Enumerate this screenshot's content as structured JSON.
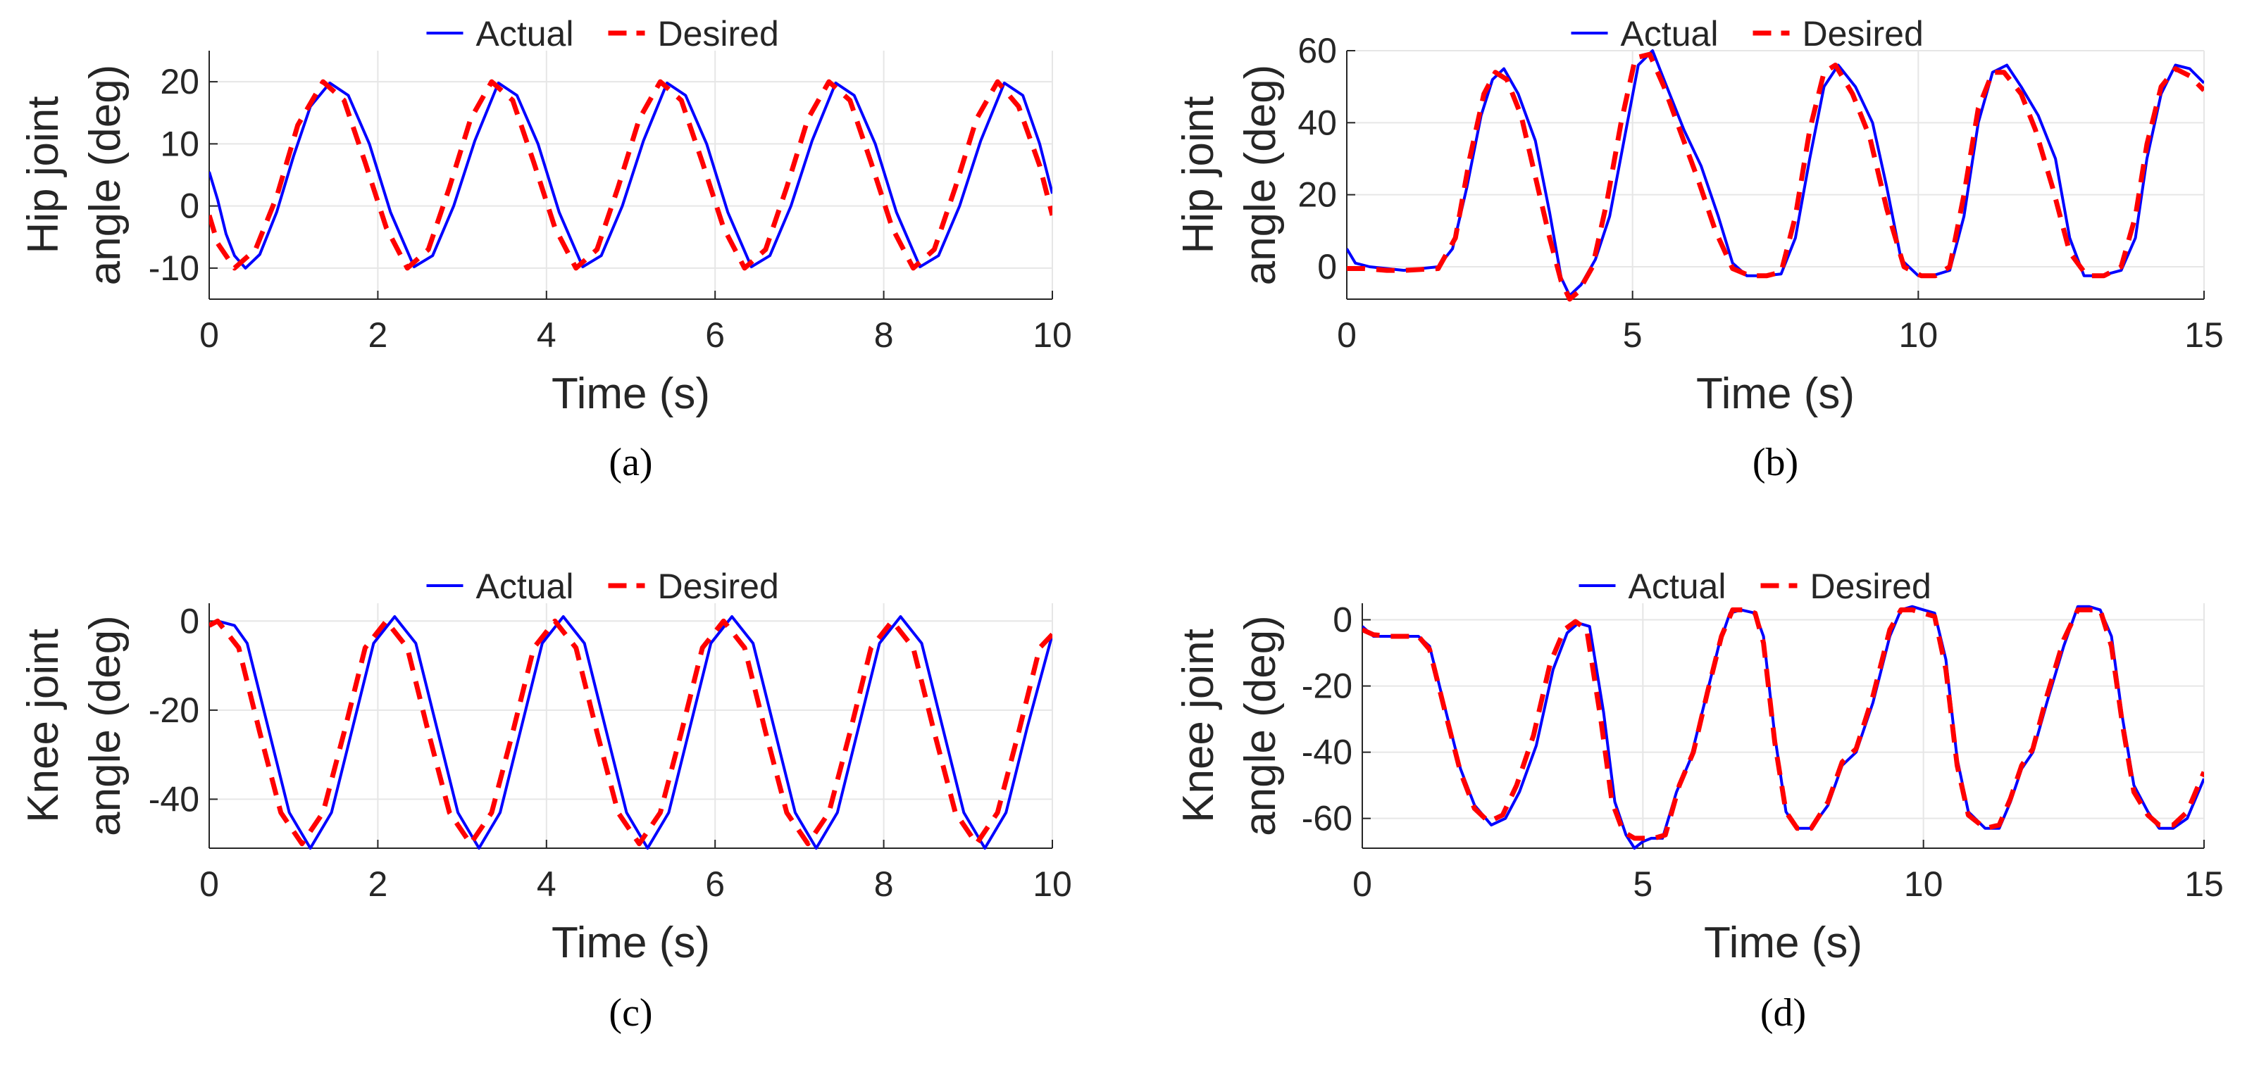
{
  "figure": {
    "background": "#ffffff",
    "colors": {
      "actual": "#0000ff",
      "desired": "#ff0000"
    }
  },
  "chart_data": [
    {
      "id": "a",
      "type": "line",
      "caption": "(a)",
      "xlabel": "Time (s)",
      "ylabel": [
        "Hip joint",
        "angle (deg)"
      ],
      "xlim": [
        0,
        10
      ],
      "ylim": [
        -15,
        25
      ],
      "xticks": [
        0,
        2,
        4,
        6,
        8,
        10
      ],
      "yticks": [
        -10,
        0,
        10,
        20
      ],
      "grid": true,
      "legend": {
        "placement": "top-center",
        "entries": [
          "Actual",
          "Desired"
        ]
      },
      "series": [
        {
          "name": "Actual",
          "color": "#0000ff",
          "style": "solid",
          "x": [
            0,
            0.1,
            0.2,
            0.3,
            0.43,
            0.6,
            0.8,
            1.0,
            1.2,
            1.43,
            1.65,
            1.9,
            2.15,
            2.43,
            2.65,
            2.9,
            3.15,
            3.43,
            3.65,
            3.9,
            4.15,
            4.43,
            4.65,
            4.9,
            5.15,
            5.43,
            5.65,
            5.9,
            6.15,
            6.43,
            6.65,
            6.9,
            7.15,
            7.43,
            7.65,
            7.9,
            8.15,
            8.43,
            8.65,
            8.9,
            9.15,
            9.43,
            9.65,
            9.85,
            10
          ],
          "y": [
            5.5,
            1,
            -4.5,
            -8,
            -10,
            -7.8,
            -1,
            8,
            16,
            19.8,
            17.8,
            10,
            -1,
            -9.8,
            -8,
            0,
            10.5,
            19.8,
            17.8,
            10,
            -1,
            -9.8,
            -8,
            0,
            10.5,
            19.8,
            17.8,
            10,
            -1,
            -9.8,
            -8,
            0,
            10.5,
            19.8,
            17.8,
            10,
            -1,
            -9.8,
            -8,
            0,
            10.5,
            19.8,
            17.8,
            10,
            2
          ]
        },
        {
          "name": "Desired",
          "color": "#ff0000",
          "style": "dashed",
          "x": [
            0,
            0.1,
            0.3,
            0.55,
            0.8,
            1.05,
            1.35,
            1.6,
            1.85,
            2.1,
            2.35,
            2.6,
            2.85,
            3.1,
            3.35,
            3.6,
            3.85,
            4.1,
            4.35,
            4.6,
            4.85,
            5.1,
            5.35,
            5.6,
            5.85,
            6.1,
            6.35,
            6.6,
            6.85,
            7.1,
            7.35,
            7.6,
            7.85,
            8.1,
            8.35,
            8.6,
            8.85,
            9.1,
            9.35,
            9.6,
            9.85,
            10
          ],
          "y": [
            -1.5,
            -6,
            -10,
            -7,
            1.5,
            13,
            20,
            17,
            7,
            -3.5,
            -10,
            -7,
            3,
            14,
            20,
            17,
            7,
            -3.5,
            -10,
            -7,
            3,
            14,
            20,
            17,
            7,
            -3.5,
            -10,
            -7,
            3,
            14,
            20,
            17,
            7,
            -3.5,
            -10,
            -7,
            3,
            14,
            20,
            16,
            6.5,
            -1.5
          ]
        }
      ]
    },
    {
      "id": "b",
      "type": "line",
      "caption": "(b)",
      "xlabel": "Time (s)",
      "ylabel": [
        "Hip joint",
        "angle (deg)"
      ],
      "xlim": [
        0,
        15
      ],
      "ylim": [
        -9,
        60
      ],
      "xticks": [
        0,
        5,
        10,
        15
      ],
      "yticks": [
        0,
        20,
        40,
        60
      ],
      "grid": true,
      "legend": {
        "placement": "top-center",
        "entries": [
          "Actual",
          "Desired"
        ]
      },
      "series": [
        {
          "name": "Actual",
          "color": "#0000ff",
          "style": "solid",
          "x": [
            0,
            0.15,
            0.4,
            1.0,
            1.6,
            1.85,
            2.1,
            2.35,
            2.55,
            2.75,
            3.0,
            3.3,
            3.55,
            3.75,
            3.9,
            4.1,
            4.35,
            4.6,
            4.85,
            5.1,
            5.35,
            5.6,
            5.9,
            6.2,
            6.5,
            6.75,
            7.0,
            7.3,
            7.6,
            7.85,
            8.1,
            8.35,
            8.6,
            8.9,
            9.2,
            9.45,
            9.7,
            10.0,
            10.25,
            10.55,
            10.8,
            11.05,
            11.3,
            11.55,
            11.8,
            12.1,
            12.4,
            12.65,
            12.9,
            13.2,
            13.55,
            13.8,
            14.0,
            14.25,
            14.5,
            14.75,
            15
          ],
          "y": [
            5,
            1,
            0,
            -1,
            0,
            5,
            22,
            42,
            52,
            55,
            48,
            35,
            15,
            -3,
            -8,
            -5,
            2,
            14,
            35,
            56,
            60,
            50,
            38,
            28,
            14,
            1,
            -2.5,
            -2.5,
            -2,
            8,
            30,
            50,
            56,
            50,
            40,
            22,
            2,
            -2.5,
            -2.5,
            -1,
            14,
            40,
            54,
            56,
            50,
            42,
            30,
            8,
            -2.5,
            -2.5,
            -1,
            8,
            30,
            48,
            56,
            55,
            51
          ]
        },
        {
          "name": "Desired",
          "color": "#ff0000",
          "style": "dashed",
          "x": [
            0,
            0.3,
            0.7,
            1.0,
            1.6,
            1.9,
            2.15,
            2.4,
            2.6,
            2.8,
            3.05,
            3.3,
            3.55,
            3.75,
            3.9,
            4.05,
            4.3,
            4.55,
            4.8,
            5.05,
            5.3,
            5.55,
            5.85,
            6.15,
            6.45,
            6.75,
            7.05,
            7.35,
            7.6,
            7.85,
            8.1,
            8.35,
            8.55,
            8.85,
            9.15,
            9.45,
            9.75,
            10.05,
            10.3,
            10.55,
            10.8,
            11.05,
            11.3,
            11.5,
            11.8,
            12.05,
            12.35,
            12.65,
            12.95,
            13.25,
            13.55,
            13.8,
            14.0,
            14.25,
            14.5,
            14.75,
            15
          ],
          "y": [
            -0.5,
            -0.5,
            -1,
            -1,
            -0.5,
            8,
            30,
            48,
            54,
            52,
            42,
            25,
            8,
            -4,
            -9,
            -7,
            0,
            18,
            40,
            58,
            59,
            50,
            37,
            24,
            10,
            -0.5,
            -2.5,
            -2.5,
            -1.5,
            14,
            38,
            54,
            56,
            48,
            36,
            16,
            0,
            -2.5,
            -2.5,
            0,
            20,
            44,
            54,
            54,
            48,
            38,
            22,
            4,
            -2.5,
            -2.5,
            0,
            14,
            34,
            50,
            55,
            53,
            49
          ]
        }
      ]
    },
    {
      "id": "c",
      "type": "line",
      "caption": "(c)",
      "xlabel": "Time (s)",
      "ylabel": [
        "Knee joint",
        "angle (deg)"
      ],
      "xlim": [
        0,
        10
      ],
      "ylim": [
        -51,
        4
      ],
      "xticks": [
        0,
        2,
        4,
        6,
        8,
        10
      ],
      "yticks": [
        -40,
        -20,
        0
      ],
      "grid": true,
      "legend": {
        "placement": "top-center",
        "entries": [
          "Actual",
          "Desired"
        ]
      },
      "series": [
        {
          "name": "Actual",
          "color": "#0000ff",
          "style": "solid",
          "x": [
            0,
            0.1,
            0.3,
            0.45,
            0.7,
            0.95,
            1.2,
            1.45,
            1.7,
            1.95,
            2.2,
            2.45,
            2.7,
            2.95,
            3.2,
            3.45,
            3.7,
            3.95,
            4.2,
            4.45,
            4.7,
            4.95,
            5.2,
            5.45,
            5.7,
            5.95,
            6.2,
            6.45,
            6.7,
            6.95,
            7.2,
            7.45,
            7.7,
            7.95,
            8.2,
            8.45,
            8.7,
            8.95,
            9.2,
            9.45,
            9.7,
            10
          ],
          "y": [
            -1,
            0,
            -1,
            -5,
            -24,
            -43,
            -51,
            -43,
            -24,
            -5,
            1,
            -5,
            -24,
            -43,
            -51,
            -43,
            -24,
            -5,
            1,
            -5,
            -24,
            -43,
            -51,
            -43,
            -24,
            -5,
            1,
            -5,
            -24,
            -43,
            -51,
            -43,
            -24,
            -5,
            1,
            -5,
            -24,
            -43,
            -51,
            -43,
            -24,
            -3
          ]
        },
        {
          "name": "Desired",
          "color": "#ff0000",
          "style": "dashed",
          "x": [
            0,
            0.1,
            0.35,
            0.6,
            0.85,
            1.1,
            1.35,
            1.6,
            1.85,
            2.1,
            2.35,
            2.6,
            2.85,
            3.1,
            3.35,
            3.6,
            3.85,
            4.1,
            4.35,
            4.6,
            4.85,
            5.1,
            5.35,
            5.6,
            5.85,
            6.1,
            6.35,
            6.6,
            6.85,
            7.1,
            7.35,
            7.6,
            7.85,
            8.1,
            8.35,
            8.6,
            8.85,
            9.1,
            9.35,
            9.6,
            9.85,
            10
          ],
          "y": [
            -1,
            0,
            -6,
            -25,
            -43,
            -50,
            -43,
            -25,
            -6,
            0,
            -6,
            -25,
            -43,
            -50,
            -43,
            -25,
            -6,
            0,
            -6,
            -25,
            -43,
            -50,
            -43,
            -25,
            -6,
            0,
            -6,
            -25,
            -43,
            -50,
            -43,
            -25,
            -6,
            0,
            -6,
            -25,
            -43,
            -50,
            -43,
            -25,
            -6,
            -3
          ]
        }
      ]
    },
    {
      "id": "d",
      "type": "line",
      "caption": "(d)",
      "xlabel": "Time (s)",
      "ylabel": [
        "Knee joint",
        "angle (deg)"
      ],
      "xlim": [
        0,
        15
      ],
      "ylim": [
        -69,
        5
      ],
      "xticks": [
        0,
        5,
        10,
        15
      ],
      "yticks": [
        -60,
        -40,
        -20,
        0
      ],
      "grid": true,
      "legend": {
        "placement": "top-center",
        "entries": [
          "Actual",
          "Desired"
        ]
      },
      "series": [
        {
          "name": "Actual",
          "color": "#0000ff",
          "style": "solid",
          "x": [
            0,
            0.2,
            0.5,
            1.0,
            1.2,
            1.45,
            1.75,
            2.0,
            2.3,
            2.55,
            2.8,
            3.1,
            3.4,
            3.65,
            3.85,
            4.05,
            4.3,
            4.5,
            4.7,
            4.85,
            5.0,
            5.15,
            5.35,
            5.6,
            5.85,
            6.1,
            6.35,
            6.55,
            6.75,
            7.0,
            7.15,
            7.35,
            7.55,
            7.75,
            8.0,
            8.3,
            8.55,
            8.8,
            9.1,
            9.4,
            9.6,
            9.8,
            10.0,
            10.2,
            10.4,
            10.6,
            10.8,
            11.1,
            11.35,
            11.55,
            11.75,
            11.95,
            12.2,
            12.5,
            12.75,
            12.95,
            13.15,
            13.35,
            13.55,
            13.75,
            14.0,
            14.2,
            14.45,
            14.7,
            15
          ],
          "y": [
            -2,
            -5,
            -5,
            -5,
            -8,
            -25,
            -45,
            -56,
            -62,
            -60,
            -52,
            -38,
            -15,
            -4,
            -1,
            -2,
            -28,
            -55,
            -65,
            -69,
            -67,
            -66,
            -66,
            -52,
            -42,
            -25,
            -8,
            2,
            3,
            2,
            -5,
            -35,
            -58,
            -63,
            -63,
            -56,
            -44,
            -40,
            -25,
            -5,
            3,
            4,
            3,
            2,
            -12,
            -42,
            -58,
            -63,
            -63,
            -55,
            -45,
            -40,
            -25,
            -8,
            4,
            4,
            3,
            -5,
            -30,
            -50,
            -58,
            -63,
            -63,
            -60,
            -48
          ]
        },
        {
          "name": "Desired",
          "color": "#ff0000",
          "style": "dashed",
          "x": [
            0,
            0.2,
            0.5,
            1.0,
            1.2,
            1.45,
            1.75,
            2.0,
            2.25,
            2.5,
            2.75,
            3.05,
            3.35,
            3.6,
            3.8,
            4.0,
            4.25,
            4.45,
            4.65,
            4.85,
            5.0,
            5.2,
            5.4,
            5.65,
            5.9,
            6.15,
            6.4,
            6.6,
            6.8,
            7.0,
            7.15,
            7.35,
            7.55,
            7.75,
            8.0,
            8.3,
            8.55,
            8.8,
            9.1,
            9.4,
            9.6,
            9.8,
            10.0,
            10.2,
            10.4,
            10.6,
            10.8,
            11.1,
            11.35,
            11.55,
            11.75,
            11.95,
            12.2,
            12.5,
            12.75,
            12.95,
            13.15,
            13.35,
            13.55,
            13.75,
            14.0,
            14.2,
            14.45,
            14.7,
            15
          ],
          "y": [
            -3,
            -4.5,
            -5,
            -5,
            -9,
            -26,
            -46,
            -57,
            -61,
            -59,
            -50,
            -35,
            -13,
            -3,
            -0.5,
            -3,
            -30,
            -55,
            -64,
            -66,
            -66,
            -66,
            -65,
            -50,
            -40,
            -22,
            -5,
            3,
            3,
            2,
            -7,
            -37,
            -58,
            -63,
            -63,
            -55,
            -43,
            -39,
            -23,
            -3,
            3,
            3,
            2,
            1,
            -15,
            -44,
            -59,
            -63,
            -62,
            -54,
            -44,
            -39,
            -23,
            -6,
            3,
            3,
            3,
            -8,
            -32,
            -52,
            -59,
            -62,
            -62,
            -58,
            -46
          ]
        }
      ]
    }
  ]
}
